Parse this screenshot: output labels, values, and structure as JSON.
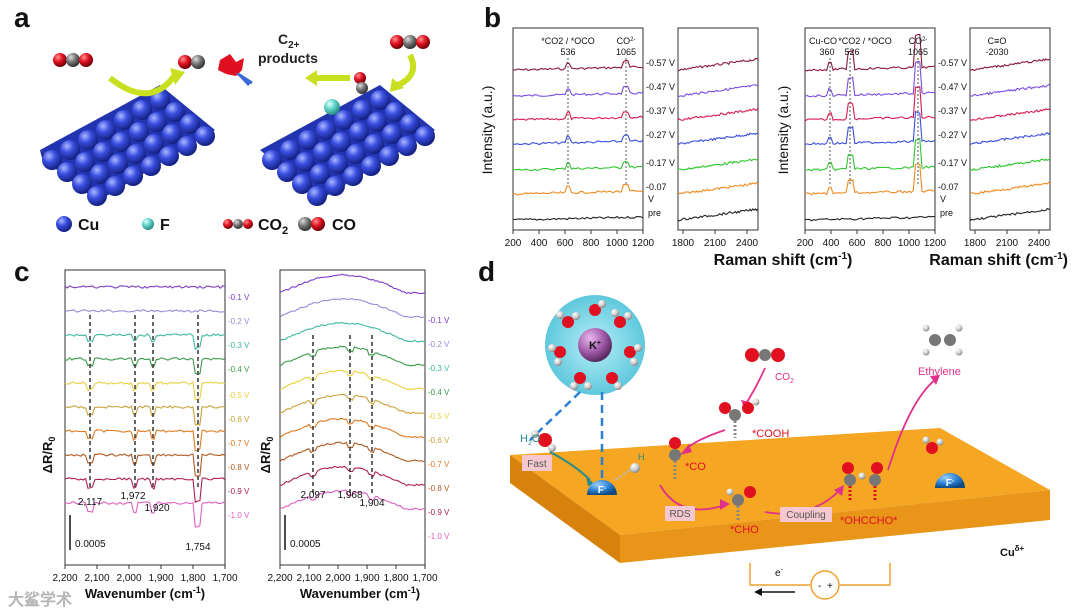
{
  "panel_a": {
    "letter": "a",
    "c2_label": "C",
    "c2_sub": "2+",
    "products_label": "products",
    "legend": {
      "cu": "Cu",
      "f": "F",
      "co2": "CO",
      "co2_sub": "2",
      "co": "CO"
    },
    "colors": {
      "cu": "#3a4fe0",
      "f": "#5fd3c8",
      "o": "#e01020",
      "c": "#6a6a6a"
    }
  },
  "panel_b": {
    "letter": "b",
    "ylabel": "Intensity (a.u.)",
    "xlabel": "Raman shift (cm",
    "xlabel_sup": "-1",
    "xlabel_end": ")",
    "left_xticks": [
      "200",
      "400",
      "600",
      "800",
      "1000",
      "1200"
    ],
    "right_xticks": [
      "1800",
      "2100",
      "2400"
    ],
    "voltages": [
      "-0.57 V",
      "-0.47 V",
      "-0.37 V",
      "-0.27 V",
      "-0.17 V",
      "-0.07",
      "V",
      "pre"
    ],
    "plot1_peaks": {
      "a": "*CO2 / *OCO",
      "a_val": "536",
      "b": "CO",
      "b_sup": "2-",
      "b_sub": "3",
      "b_val": "1065"
    },
    "plot2_peaks": {
      "a": "Cu-CO",
      "a_val": "360",
      "b": "*CO2 / *OCO",
      "b_val": "526",
      "c": "CO",
      "c_sup": "2-",
      "c_sub": "3",
      "c_val": "1065",
      "d": "C≡O",
      "d_val": "-2030"
    },
    "series_colors": [
      "#8b1a3a",
      "#7a4de0",
      "#d81b50",
      "#3a4fe0",
      "#2ec82e",
      "#f08a20",
      "#222222"
    ]
  },
  "panel_c": {
    "letter": "c",
    "ylabel": "ΔR/R",
    "ylabel_sub": "0",
    "xlabel": "Wavenumber (cm",
    "xlabel_sup": "-1",
    "xlabel_end": ")",
    "xticks": [
      "2,200",
      "2,100",
      "2,000",
      "1,900",
      "1,800",
      "1,700"
    ],
    "voltages": [
      "-0.1 V",
      "-0.2 V",
      "-0.3 V",
      "-0.4 V",
      "-0.5 V",
      "-0.6 V",
      "-0.7 V",
      "-0.8 V",
      "-0.9 V",
      "-1.0 V"
    ],
    "left_peaks": [
      "2,117",
      "1,972",
      "1,920",
      "1,754"
    ],
    "right_peaks": [
      "2,097",
      "1,968",
      "1,904"
    ],
    "scale": "0.0005",
    "series_colors": [
      "#7b3fc8",
      "#9a8ad8",
      "#3fb8a0",
      "#3a9a4a",
      "#e8d040",
      "#c9a23a",
      "#e07a20",
      "#b05a20",
      "#b02050",
      "#e060c0"
    ]
  },
  "panel_d": {
    "letter": "d",
    "k_label": "K",
    "k_sup": "+",
    "co2": "CO",
    "co2_sub": "2",
    "ethylene": "Ethylene",
    "h2o": "H",
    "h2o_sub": "2",
    "h2o_end": "O",
    "fast": "Fast",
    "h": "H",
    "f_ion": "F",
    "f_sup": "-",
    "cooh": "*COOH",
    "co": "*CO",
    "rds": "RDS",
    "cho": "*CHO",
    "coupling": "Coupling",
    "ohccho": "*OHCCHO*",
    "cu_label": "Cu",
    "cu_sup": "δ+",
    "electron": "e",
    "electron_sup": "-",
    "minus": "-",
    "plus": "+",
    "colors": {
      "slab_top": "#f5a623",
      "slab_front": "#e08a10",
      "pink": "#e0308a",
      "red": "#e01020",
      "k": "#a05aa8",
      "sphere": "#7fd6e6",
      "f": "#2a7fd0"
    }
  },
  "watermark": "大鲨学术"
}
